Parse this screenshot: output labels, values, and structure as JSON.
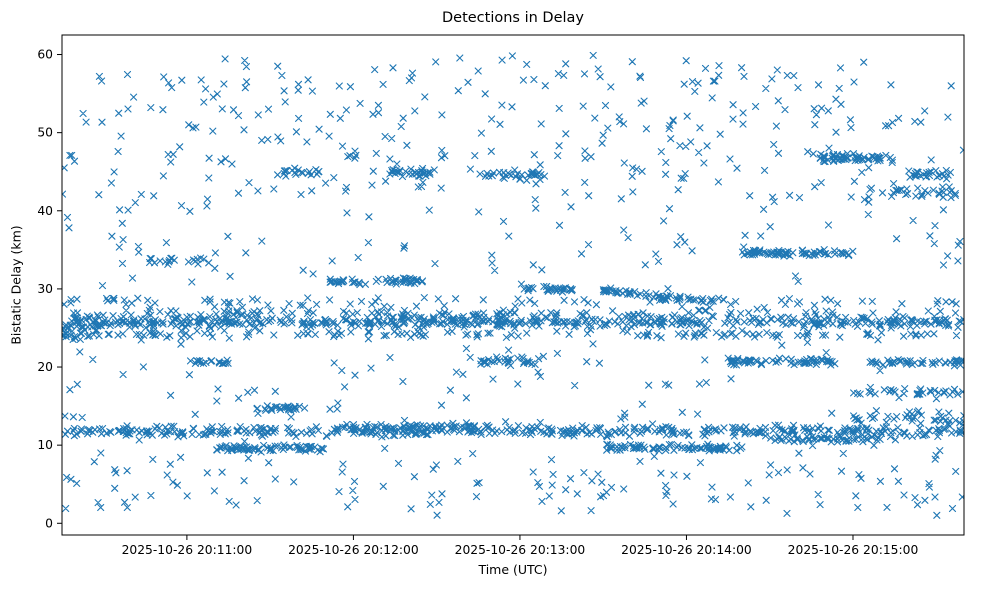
{
  "figure": {
    "title": "Detections in Delay",
    "xlabel": "Time (UTC)",
    "ylabel": "Bistatic Delay (km)"
  },
  "chart_data": {
    "type": "scatter",
    "title": "Detections in Delay",
    "xlabel": "Time (UTC)",
    "ylabel": "Bistatic Delay (km)",
    "marker": "x",
    "marker_color": "#1f77b4",
    "marker_half_size": 3,
    "legend": "none",
    "grid": false,
    "ylim": [
      -1.5,
      62.5
    ],
    "y_ticks": [
      0,
      10,
      20,
      30,
      40,
      50,
      60
    ],
    "x_span_seconds": 325,
    "x_ticks": [
      {
        "s": 45,
        "label": "2025-10-26 20:11:00"
      },
      {
        "s": 105,
        "label": "2025-10-26 20:12:00"
      },
      {
        "s": 165,
        "label": "2025-10-26 20:13:00"
      },
      {
        "s": 225,
        "label": "2025-10-26 20:14:00"
      },
      {
        "s": 285,
        "label": "2025-10-26 20:15:00"
      }
    ],
    "seed": 1337,
    "bands": [
      {
        "s0": 0,
        "s1": 325,
        "y": 25.8,
        "spread": 0.55,
        "count": 500
      },
      {
        "s0": 0,
        "s1": 325,
        "y": 24.2,
        "spread": 0.35,
        "count": 130
      },
      {
        "s0": 0,
        "s1": 325,
        "y": 26.8,
        "spread": 0.4,
        "count": 120
      },
      {
        "s0": 0,
        "s1": 325,
        "y": 28.3,
        "spread": 0.5,
        "count": 70
      },
      {
        "s0": 0,
        "s1": 15,
        "y": 25.0,
        "spread": 1.2,
        "count": 30
      },
      {
        "s0": 0,
        "s1": 325,
        "y": 11.8,
        "spread": 0.5,
        "count": 420
      },
      {
        "s0": 55,
        "s1": 95,
        "y": 9.6,
        "spread": 0.3,
        "count": 70
      },
      {
        "s0": 195,
        "s1": 245,
        "y": 9.7,
        "spread": 0.3,
        "count": 80
      },
      {
        "s0": 255,
        "s1": 295,
        "y": 10.8,
        "spread": 0.3,
        "count": 50
      },
      {
        "s0": 100,
        "s1": 160,
        "y": 12.3,
        "spread": 0.3,
        "count": 60
      },
      {
        "s0": 70,
        "s1": 85,
        "y": 14.7,
        "spread": 0.25,
        "count": 25
      },
      {
        "s0": 285,
        "s1": 325,
        "y": 13.5,
        "spread": 0.8,
        "count": 40
      },
      {
        "s0": 285,
        "s1": 325,
        "y": 16.8,
        "spread": 0.6,
        "count": 35
      },
      {
        "s0": 240,
        "s1": 280,
        "y": 20.7,
        "spread": 0.3,
        "count": 60
      },
      {
        "s0": 290,
        "s1": 325,
        "y": 20.6,
        "spread": 0.3,
        "count": 45
      },
      {
        "s0": 150,
        "s1": 175,
        "y": 20.8,
        "spread": 0.4,
        "count": 30
      },
      {
        "s0": 45,
        "s1": 60,
        "y": 20.6,
        "spread": 0.3,
        "count": 18
      },
      {
        "s0": 95,
        "s1": 130,
        "y": 31.0,
        "spread": 0.3,
        "count": 55
      },
      {
        "s0": 165,
        "s1": 185,
        "y": 30.2,
        "spread": 0.3,
        "count": 30,
        "slope": -0.02
      },
      {
        "s0": 195,
        "s1": 215,
        "y": 29.8,
        "spread": 0.3,
        "count": 30,
        "slope": -0.03
      },
      {
        "s0": 215,
        "s1": 240,
        "y": 28.9,
        "spread": 0.3,
        "count": 35,
        "slope": -0.02
      },
      {
        "s0": 245,
        "s1": 285,
        "y": 34.6,
        "spread": 0.3,
        "count": 70
      },
      {
        "s0": 30,
        "s1": 55,
        "y": 33.6,
        "spread": 0.4,
        "count": 20
      },
      {
        "s0": 272,
        "s1": 300,
        "y": 46.8,
        "spread": 0.4,
        "count": 60
      },
      {
        "s0": 150,
        "s1": 175,
        "y": 44.6,
        "spread": 0.5,
        "count": 35
      },
      {
        "s0": 80,
        "s1": 95,
        "y": 45.0,
        "spread": 0.3,
        "count": 18
      },
      {
        "s0": 118,
        "s1": 135,
        "y": 44.9,
        "spread": 0.4,
        "count": 30
      },
      {
        "s0": 305,
        "s1": 322,
        "y": 44.7,
        "spread": 0.4,
        "count": 25
      },
      {
        "s0": 298,
        "s1": 322,
        "y": 42.3,
        "spread": 0.5,
        "count": 25
      }
    ],
    "background_scatter": [
      {
        "count": 450,
        "y0": 2.0,
        "y1": 60.0
      },
      {
        "count": 160,
        "y0": 40.0,
        "y1": 58.0
      },
      {
        "count": 60,
        "y0": 1.0,
        "y1": 8.0
      }
    ]
  }
}
